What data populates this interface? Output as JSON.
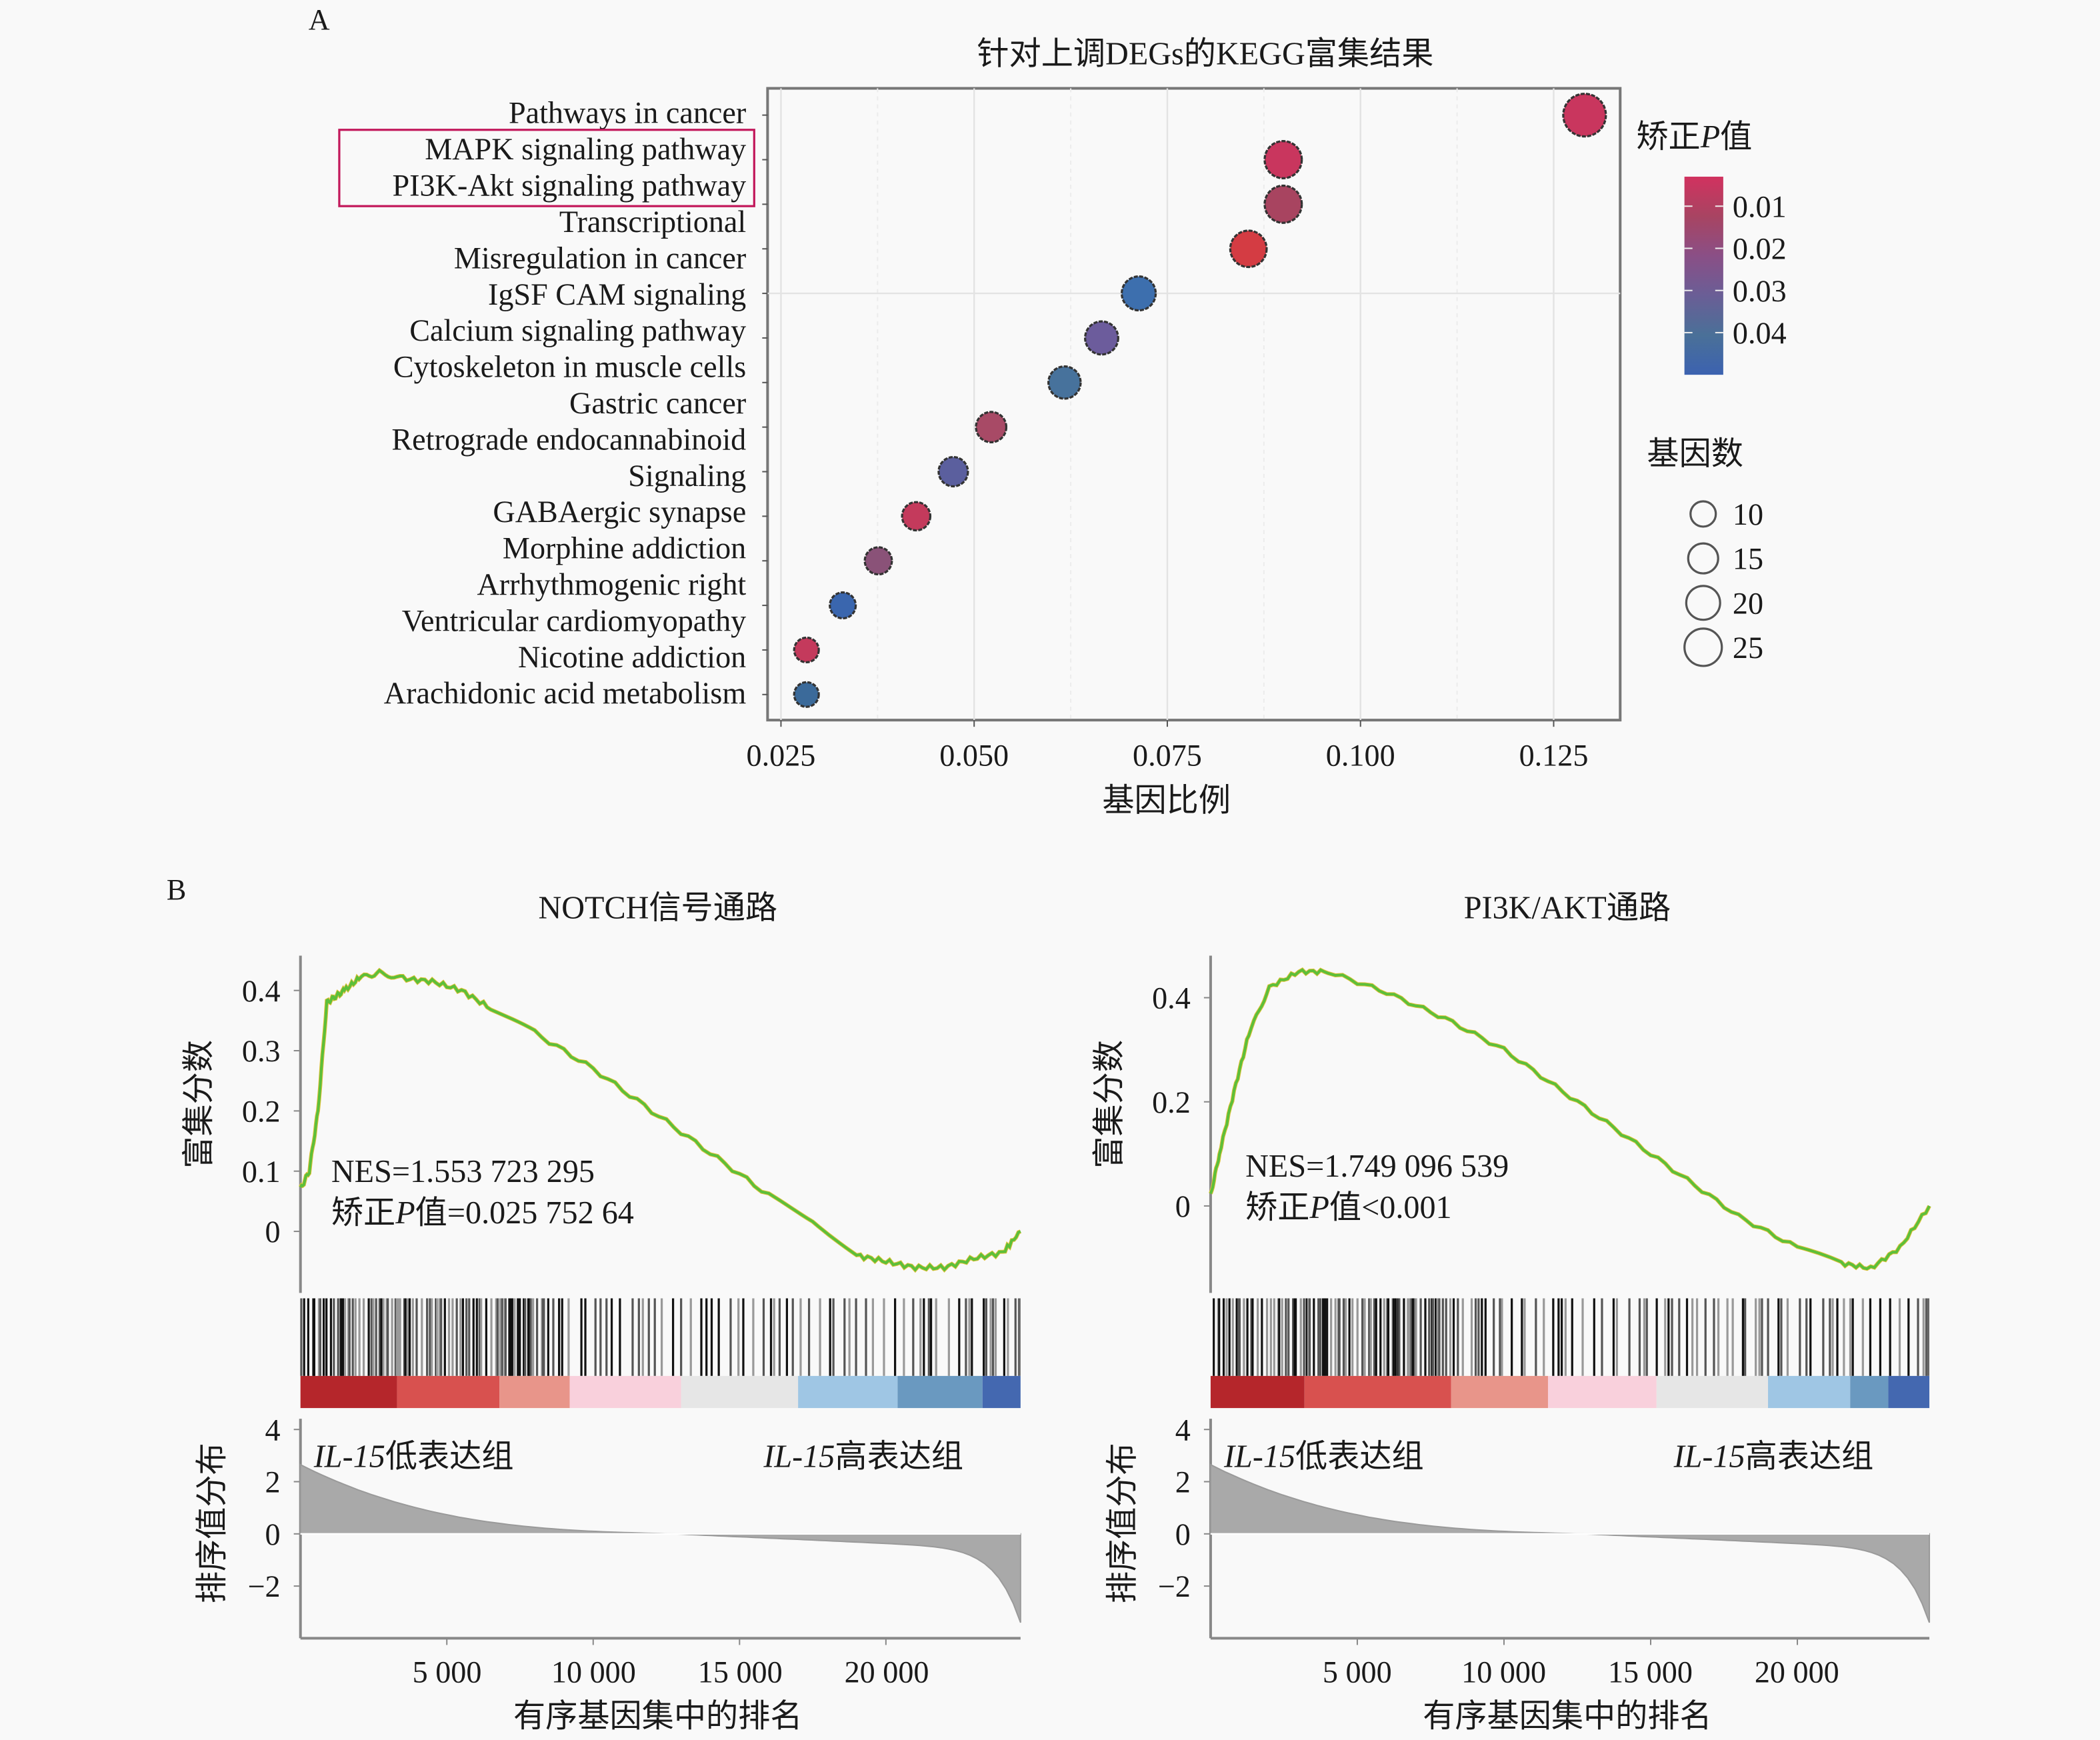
{
  "panel_labels": {
    "a": "A",
    "b": "B"
  },
  "chart_data": [
    {
      "type": "scatter",
      "title": "针对上调DEGs的KEGG富集结果",
      "xlabel": "基因比例",
      "ylabel": "",
      "xlim": [
        0.025,
        0.135
      ],
      "xticks": [
        "0.025",
        "0.050",
        "0.075",
        "0.100",
        "0.125"
      ],
      "xtick_values": [
        0.025,
        0.05,
        0.075,
        0.1,
        0.125
      ],
      "grid": true,
      "y_label_lines": [
        "Pathways in cancer",
        "MAPK signaling pathway",
        "PI3K-Akt signaling pathway",
        "Transcriptional",
        "Misregulation in cancer",
        "IgSF CAM signaling",
        "Calcium signaling pathway",
        "Cytoskeleton in muscle cells",
        "Gastric cancer",
        "Retrograde endocannabinoid",
        "Signaling",
        "GABAergic synapse",
        "Morphine addiction",
        "Arrhythmogenic right",
        "Ventricular cardiomyopathy",
        "Nicotine addiction",
        "Arachidonic acid metabolism"
      ],
      "highlighted_terms": [
        "MAPK signaling pathway",
        "PI3K-Akt signaling pathway"
      ],
      "highlight_color": "#c2185b",
      "points": [
        {
          "term": "Pathways in cancer",
          "gene_ratio": 0.129,
          "count": 27,
          "p_adj": 0.008,
          "color": "#c9365e"
        },
        {
          "term": "MAPK signaling pathway",
          "gene_ratio": 0.09,
          "count": 19,
          "p_adj": 0.009,
          "color": "#c9365e"
        },
        {
          "term": "PI3K-Akt signaling pathway",
          "gene_ratio": 0.09,
          "count": 19,
          "p_adj": 0.018,
          "color": "#a84460"
        },
        {
          "term": "Transcriptional misregulation in cancer",
          "gene_ratio": 0.0855,
          "count": 18,
          "p_adj": 0.005,
          "color": "#d43c43"
        },
        {
          "term": "IgSF CAM signaling",
          "gene_ratio": 0.0713,
          "count": 15,
          "p_adj": 0.045,
          "color": "#3d6fae"
        },
        {
          "term": "Calcium signaling pathway",
          "gene_ratio": 0.0665,
          "count": 14,
          "p_adj": 0.032,
          "color": "#6c5c9c"
        },
        {
          "term": "Cytoskeleton in muscle cells",
          "gene_ratio": 0.0617,
          "count": 13,
          "p_adj": 0.042,
          "color": "#47729c"
        },
        {
          "term": "Gastric cancer",
          "gene_ratio": 0.0522,
          "count": 11,
          "p_adj": 0.018,
          "color": "#a84a66"
        },
        {
          "term": "Retrograde endocannabinoid signaling",
          "gene_ratio": 0.0473,
          "count": 10,
          "p_adj": 0.037,
          "color": "#5b5f9e"
        },
        {
          "term": "GABAergic synapse",
          "gene_ratio": 0.0425,
          "count": 9,
          "p_adj": 0.01,
          "color": "#c43a5c"
        },
        {
          "term": "Morphine addiction",
          "gene_ratio": 0.0376,
          "count": 8,
          "p_adj": 0.025,
          "color": "#8a5278"
        },
        {
          "term": "Arrhythmogenic right ventricular cardiomyopathy",
          "gene_ratio": 0.033,
          "count": 7,
          "p_adj": 0.046,
          "color": "#3a66ae"
        },
        {
          "term": "Nicotine addiction",
          "gene_ratio": 0.0283,
          "count": 6,
          "p_adj": 0.01,
          "color": "#c43a5c"
        },
        {
          "term": "Arachidonic acid metabolism",
          "gene_ratio": 0.0283,
          "count": 6,
          "p_adj": 0.045,
          "color": "#3b6a9a"
        }
      ],
      "legend_color": {
        "title_pre": "矫正",
        "title_italic": "P",
        "title_post": "值",
        "ticks": [
          "0.01",
          "0.02",
          "0.03",
          "0.04"
        ],
        "tick_values": [
          0.01,
          0.02,
          0.03,
          0.04
        ],
        "range": [
          0.003,
          0.05
        ],
        "colors": [
          "#d1325f",
          "#a84462",
          "#8a4f86",
          "#6a5e96",
          "#4a7098",
          "#3c62b0"
        ],
        "placement": "right"
      },
      "legend_size": {
        "title": "基因数",
        "labels": [
          "10",
          "15",
          "20",
          "25"
        ],
        "values": [
          10,
          15,
          20,
          25
        ]
      }
    },
    {
      "type": "line",
      "title": "NOTCH信号通路",
      "ylabel": "富集分数",
      "yticks": [
        "0.4",
        "0.3",
        "0.2",
        "0.1",
        "0"
      ],
      "ytick_values": [
        0.4,
        0.3,
        0.2,
        0.1,
        0
      ],
      "annotation_nes": "NES=1.553 723 295",
      "annotation_p_pre": "矫正",
      "annotation_p_italic": "P",
      "annotation_p_post": "值=0.025 752 64",
      "line_color": "#5cbf3a",
      "x": [
        0,
        300,
        600,
        900,
        1200,
        1500,
        2000,
        2700,
        3500,
        4500,
        5500,
        6500,
        8000,
        10000,
        12000,
        14000,
        16000,
        17500,
        19000,
        20000,
        21000,
        22000,
        23000,
        24000,
        24600
      ],
      "y": [
        0.07,
        0.1,
        0.2,
        0.38,
        0.39,
        0.4,
        0.42,
        0.43,
        0.42,
        0.415,
        0.4,
        0.37,
        0.33,
        0.27,
        0.2,
        0.13,
        0.06,
        0.02,
        -0.04,
        -0.05,
        -0.06,
        -0.06,
        -0.045,
        -0.035,
        0.0
      ],
      "heat_strip": [
        {
          "from": 0,
          "to": 3300,
          "color": "#b5262b"
        },
        {
          "from": 3300,
          "to": 6800,
          "color": "#d8514f"
        },
        {
          "from": 6800,
          "to": 9200,
          "color": "#e8958a"
        },
        {
          "from": 9200,
          "to": 13000,
          "color": "#f9d0dc"
        },
        {
          "from": 13000,
          "to": 17000,
          "color": "#e6e6e6"
        },
        {
          "from": 17000,
          "to": 20400,
          "color": "#9fc6e4"
        },
        {
          "from": 20400,
          "to": 23300,
          "color": "#6a99c0"
        },
        {
          "from": 23300,
          "to": 24600,
          "color": "#4468b0"
        }
      ],
      "metric_ylabel": "排序值分布",
      "metric_yticks": [
        "4",
        "2",
        "0",
        "−2"
      ],
      "metric_ytick_values": [
        4,
        2,
        0,
        -2
      ],
      "low_group_italic": "IL-15",
      "low_group_text": "低表达组",
      "high_group_italic": "IL-15",
      "high_group_text": "高表达组",
      "xticks": [
        "5 000",
        "10 000",
        "15 000",
        "20 000"
      ],
      "xtick_values": [
        5000,
        10000,
        15000,
        20000
      ],
      "xlabel": "有序基因集中的排名",
      "xmax": 24600
    },
    {
      "type": "line",
      "title": "PI3K/AKT通路",
      "ylabel": "富集分数",
      "yticks": [
        "0.4",
        "0.2",
        "0"
      ],
      "ytick_values": [
        0.4,
        0.2,
        0
      ],
      "annotation_nes": "NES=1.749 096 539",
      "annotation_p_pre": "矫正",
      "annotation_p_italic": "P",
      "annotation_p_post": "值<0.001",
      "line_color": "#5cbf3a",
      "x": [
        0,
        300,
        800,
        1300,
        2000,
        3000,
        4000,
        6000,
        8000,
        10000,
        12000,
        14000,
        16000,
        18000,
        20000,
        21500,
        22500,
        23500,
        24500
      ],
      "y": [
        0.02,
        0.1,
        0.22,
        0.33,
        0.42,
        0.45,
        0.45,
        0.41,
        0.36,
        0.3,
        0.22,
        0.14,
        0.06,
        -0.02,
        -0.08,
        -0.11,
        -0.12,
        -0.08,
        0.0
      ],
      "heat_strip": [
        {
          "from": 0,
          "to": 3200,
          "color": "#b5262b"
        },
        {
          "from": 3200,
          "to": 8200,
          "color": "#d8514f"
        },
        {
          "from": 8200,
          "to": 11500,
          "color": "#e8958a"
        },
        {
          "from": 11500,
          "to": 15200,
          "color": "#f9d0dc"
        },
        {
          "from": 15200,
          "to": 19000,
          "color": "#e6e6e6"
        },
        {
          "from": 19000,
          "to": 21800,
          "color": "#9fc6e4"
        },
        {
          "from": 21800,
          "to": 23100,
          "color": "#6a99c0"
        },
        {
          "from": 23100,
          "to": 24500,
          "color": "#4468b0"
        }
      ],
      "metric_ylabel": "排序值分布",
      "metric_yticks": [
        "4",
        "2",
        "0",
        "−2"
      ],
      "metric_ytick_values": [
        4,
        2,
        0,
        -2
      ],
      "low_group_italic": "IL-15",
      "low_group_text": "低表达组",
      "high_group_italic": "IL-15",
      "high_group_text": "高表达组",
      "xticks": [
        "5 000",
        "10 000",
        "15 000",
        "20 000"
      ],
      "xtick_values": [
        5000,
        10000,
        15000,
        20000
      ],
      "xlabel": "有序基因集中的排名",
      "xmax": 24500
    }
  ]
}
